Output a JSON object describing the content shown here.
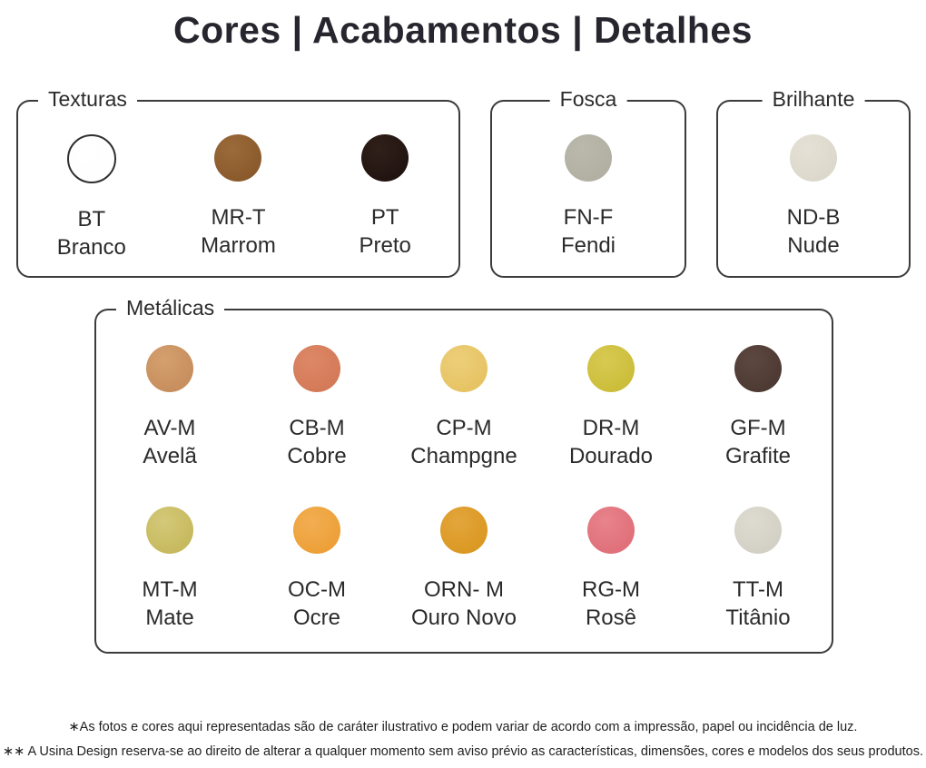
{
  "title": "Cores | Acabamentos | Detalhes",
  "panels": {
    "texturas": {
      "label": "Texturas",
      "swatches": [
        {
          "code": "BT",
          "name": "Branco",
          "color": "#fefefe",
          "highlight": "#ffffff",
          "outlined": true
        },
        {
          "code": "MR-T",
          "name": "Marrom",
          "color": "#8a5a2c",
          "highlight": "#9c6b3a"
        },
        {
          "code": "PT",
          "name": "Preto",
          "color": "#211410",
          "highlight": "#31201a"
        }
      ]
    },
    "fosca": {
      "label": "Fosca",
      "swatches": [
        {
          "code": "FN-F",
          "name": "Fendi",
          "color": "#b1b0a2",
          "highlight": "#bab9ac"
        }
      ]
    },
    "brilhante": {
      "label": "Brilhante",
      "swatches": [
        {
          "code": "ND-B",
          "name": "Nude",
          "color": "#dcd8cb",
          "highlight": "#e5e1d6"
        }
      ]
    },
    "metalicas": {
      "label": "Metálicas",
      "swatches": [
        {
          "code": "AV-M",
          "name": "Avelã",
          "color": "#c78e5e",
          "highlight": "#d5a06e"
        },
        {
          "code": "CB-M",
          "name": "Cobre",
          "color": "#d47a58",
          "highlight": "#dd8867"
        },
        {
          "code": "CP-M",
          "name": "Champgne",
          "color": "#e6c364",
          "highlight": "#edcf7a"
        },
        {
          "code": "DR-M",
          "name": "Dourado",
          "color": "#ccbd3a",
          "highlight": "#d7ca52"
        },
        {
          "code": "GF-M",
          "name": "Grafite",
          "color": "#4d3a32",
          "highlight": "#5c4840"
        },
        {
          "code": "MT-M",
          "name": "Mate",
          "color": "#c6b95e",
          "highlight": "#d4c97a"
        },
        {
          "code": "OC-M",
          "name": "Ocre",
          "color": "#eda038",
          "highlight": "#f2ae52"
        },
        {
          "code": "ORN- M",
          "name": "Ouro Novo",
          "color": "#db9823",
          "highlight": "#e3a63c"
        },
        {
          "code": "RG-M",
          "name": "Rosê",
          "color": "#e0707a",
          "highlight": "#e8838c"
        },
        {
          "code": "TT-M",
          "name": "Titânio",
          "color": "#d3d0c5",
          "highlight": "#dedbd1"
        }
      ]
    }
  },
  "footer": {
    "line1": "∗As fotos e cores aqui representadas são de caráter ilustrativo e podem variar de acordo com a impressão, papel ou incidência de luz.",
    "line2": "∗∗ A Usina Design reserva-se ao direito de alterar a qualquer momento sem  aviso prévio  as características, dimensões, cores e modelos dos seus produtos."
  }
}
